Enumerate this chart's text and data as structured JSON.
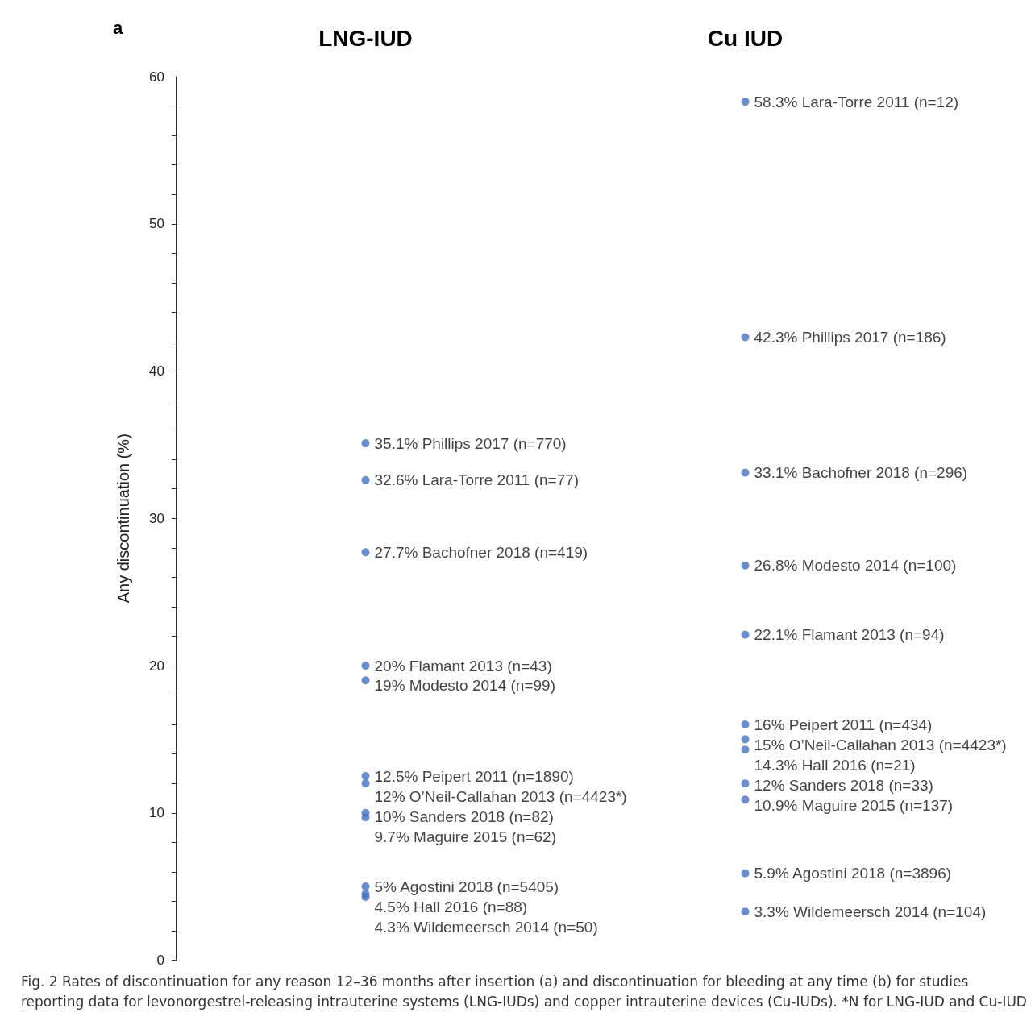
{
  "chart_data": {
    "type": "scatter",
    "ylabel": "Any discontinuation (%)",
    "categories": [
      "LNG-IUD",
      "Cu IUD"
    ],
    "series": [
      {
        "color": "#4472c4",
        "x": [
          "LNG-IUD",
          "LNG-IUD",
          "LNG-IUD",
          "LNG-IUD",
          "LNG-IUD",
          "LNG-IUD",
          "LNG-IUD",
          "LNG-IUD",
          "LNG-IUD",
          "LNG-IUD",
          "LNG-IUD",
          "LNG-IUD",
          "Cu IUD",
          "Cu IUD",
          "Cu IUD",
          "Cu IUD",
          "Cu IUD",
          "Cu IUD",
          "Cu IUD",
          "Cu IUD",
          "Cu IUD",
          "Cu IUD",
          "Cu IUD",
          "Cu IUD"
        ],
        "values": [
          35.1,
          32.6,
          27.7,
          20,
          19,
          12.5,
          12,
          10,
          9.7,
          5,
          4.5,
          4.3,
          58.3,
          42.3,
          33.1,
          26.8,
          22.1,
          16,
          15,
          14.3,
          12,
          10.9,
          5.9,
          3.3
        ],
        "value_labels": [
          "35.1% Phillips 2017 (n=770)",
          "32.6% Lara-Torre 2011 (n=77)",
          "27.7% Bachofner 2018 (n=419)",
          "20% Flamant 2013 (n=43)",
          "19% Modesto 2014 (n=99)",
          "12.5% Peipert 2011 (n=1890)",
          "12% O’Neil-Callahan 2013 (n=4423*)",
          "10% Sanders 2018 (n=82)",
          "9.7% Maguire 2015 (n=62)",
          "5% Agostini 2018 (n=5405)",
          "4.5% Hall 2016 (n=88)",
          "4.3% Wildemeersch 2014 (n=50)",
          "58.3% Lara-Torre 2011 (n=12)",
          "42.3% Phillips 2017 (n=186)",
          "33.1% Bachofner 2018 (n=296)",
          "26.8% Modesto 2014 (n=100)",
          "22.1% Flamant 2013 (n=94)",
          "16% Peipert 2011 (n=434)",
          "15% O’Neil-Callahan 2013 (n=4423*)",
          "14.3% Hall 2016 (n=21)",
          "12% Sanders 2018 (n=33)",
          "10.9% Maguire 2015 (n=137)",
          "5.9% Agostini 2018 (n=3896)",
          "3.3% Wildemeersch 2014 (n=104)"
        ]
      }
    ],
    "ylim": [
      0,
      60
    ],
    "yticks": [
      0,
      10,
      20,
      30,
      40,
      50,
      60
    ],
    "grid": false,
    "marker": "circle",
    "annotations": [
      "a",
      "Fig. 2 Rates of discontinuation for any reason 12–36 months after insertion (a) and discontinuation for bleeding at any time (b) for studies reporting data for levonorgestrel-releasing intrauterine systems (LNG-IUDs) and copper intrauterine devices (Cu-IUDs). *N for LNG-IUD and Cu-IUD"
    ]
  }
}
